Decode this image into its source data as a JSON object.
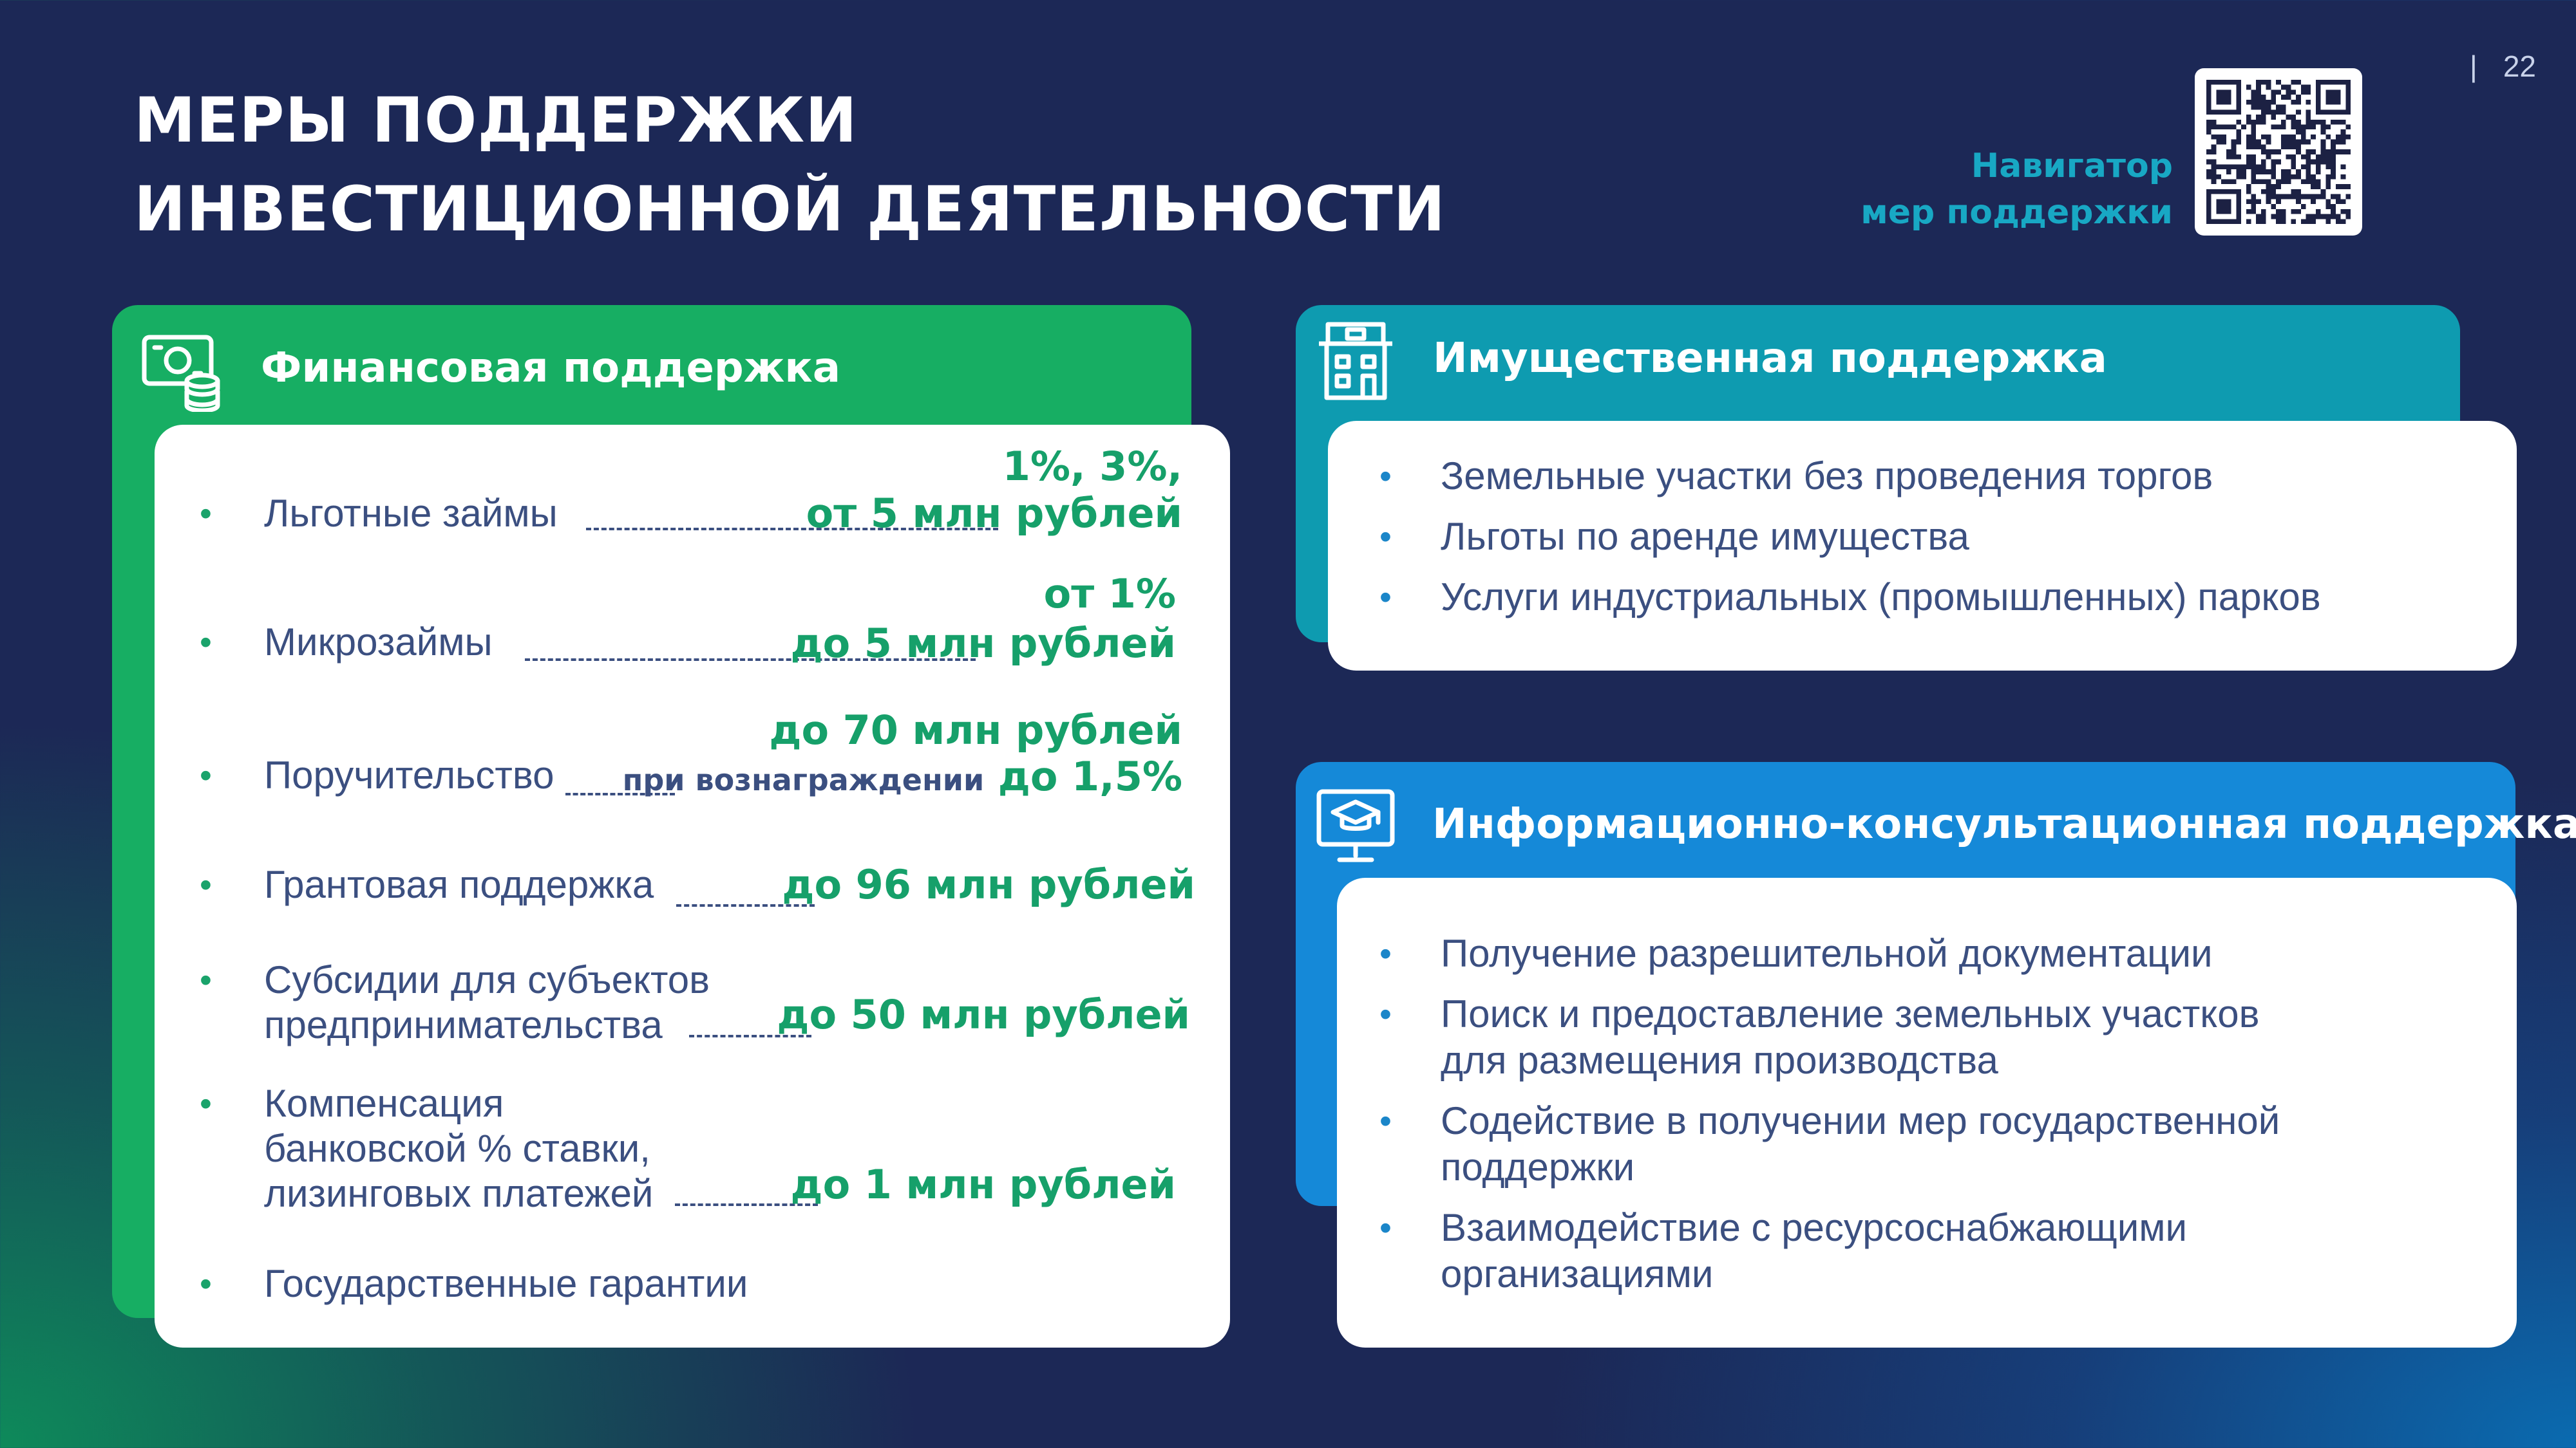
{
  "header": {
    "title_line1": "МЕРЫ ПОДДЕРЖКИ",
    "title_line2": "ИНВЕСТИЦИОННОЙ ДЕЯТЕЛЬНОСТИ",
    "page_separator": "|",
    "page_number": "22",
    "navigator_line1": "Навигатор",
    "navigator_line2": "мер поддержки"
  },
  "financial": {
    "title": "Финансовая поддержка",
    "icon": "money-coins-icon",
    "items": [
      {
        "label": "Льготные займы",
        "value_line1": "1%, 3%,",
        "value_line2": "от 5 млн рублей"
      },
      {
        "label": "Микрозаймы",
        "value_line1": "от 1%",
        "value_line2": "до 5 млн рублей"
      },
      {
        "label": "Поручительство",
        "value_line1": "до 70 млн рублей",
        "value_small": "при вознаграждении",
        "value_line2": "до 1,5%"
      },
      {
        "label": "Грантовая поддержка",
        "value_line2": "до 96 млн рублей"
      },
      {
        "label_line1": "Субсидии для субъектов",
        "label_line2": "предпринимательства",
        "value_line2": "до 50 млн рублей"
      },
      {
        "label_line1": "Компенсация",
        "label_line2": "банковской % ставки,",
        "label_line3": "лизинговых платежей",
        "value_line2": "до 1 млн рублей"
      },
      {
        "label": "Государственные гарантии"
      }
    ]
  },
  "property": {
    "title": "Имущественная поддержка",
    "icon": "building-icon",
    "items": [
      "Земельные участки без проведения торгов",
      "Льготы по аренде имущества",
      "Услуги индустриальных (промышленных) парков"
    ]
  },
  "info": {
    "title": "Информационно-консультационная поддержка",
    "icon": "graduation-monitor-icon",
    "items": [
      {
        "line1": "Получение разрешительной документации"
      },
      {
        "line1": "Поиск и предоставление земельных участков",
        "line2": "для размещения производства"
      },
      {
        "line1": "Содействие в получении мер государственной",
        "line2": "поддержки"
      },
      {
        "line1": "Взаимодействие с ресурсоснабжающими",
        "line2": "организациями"
      }
    ]
  },
  "colors": {
    "background": "#1c2856",
    "green": "#17ae63",
    "teal": "#0e9bb0",
    "blue": "#1589d8",
    "value_green": "#16a06a",
    "body_text": "#3b4f80",
    "navigator_text": "#18a8c4"
  }
}
